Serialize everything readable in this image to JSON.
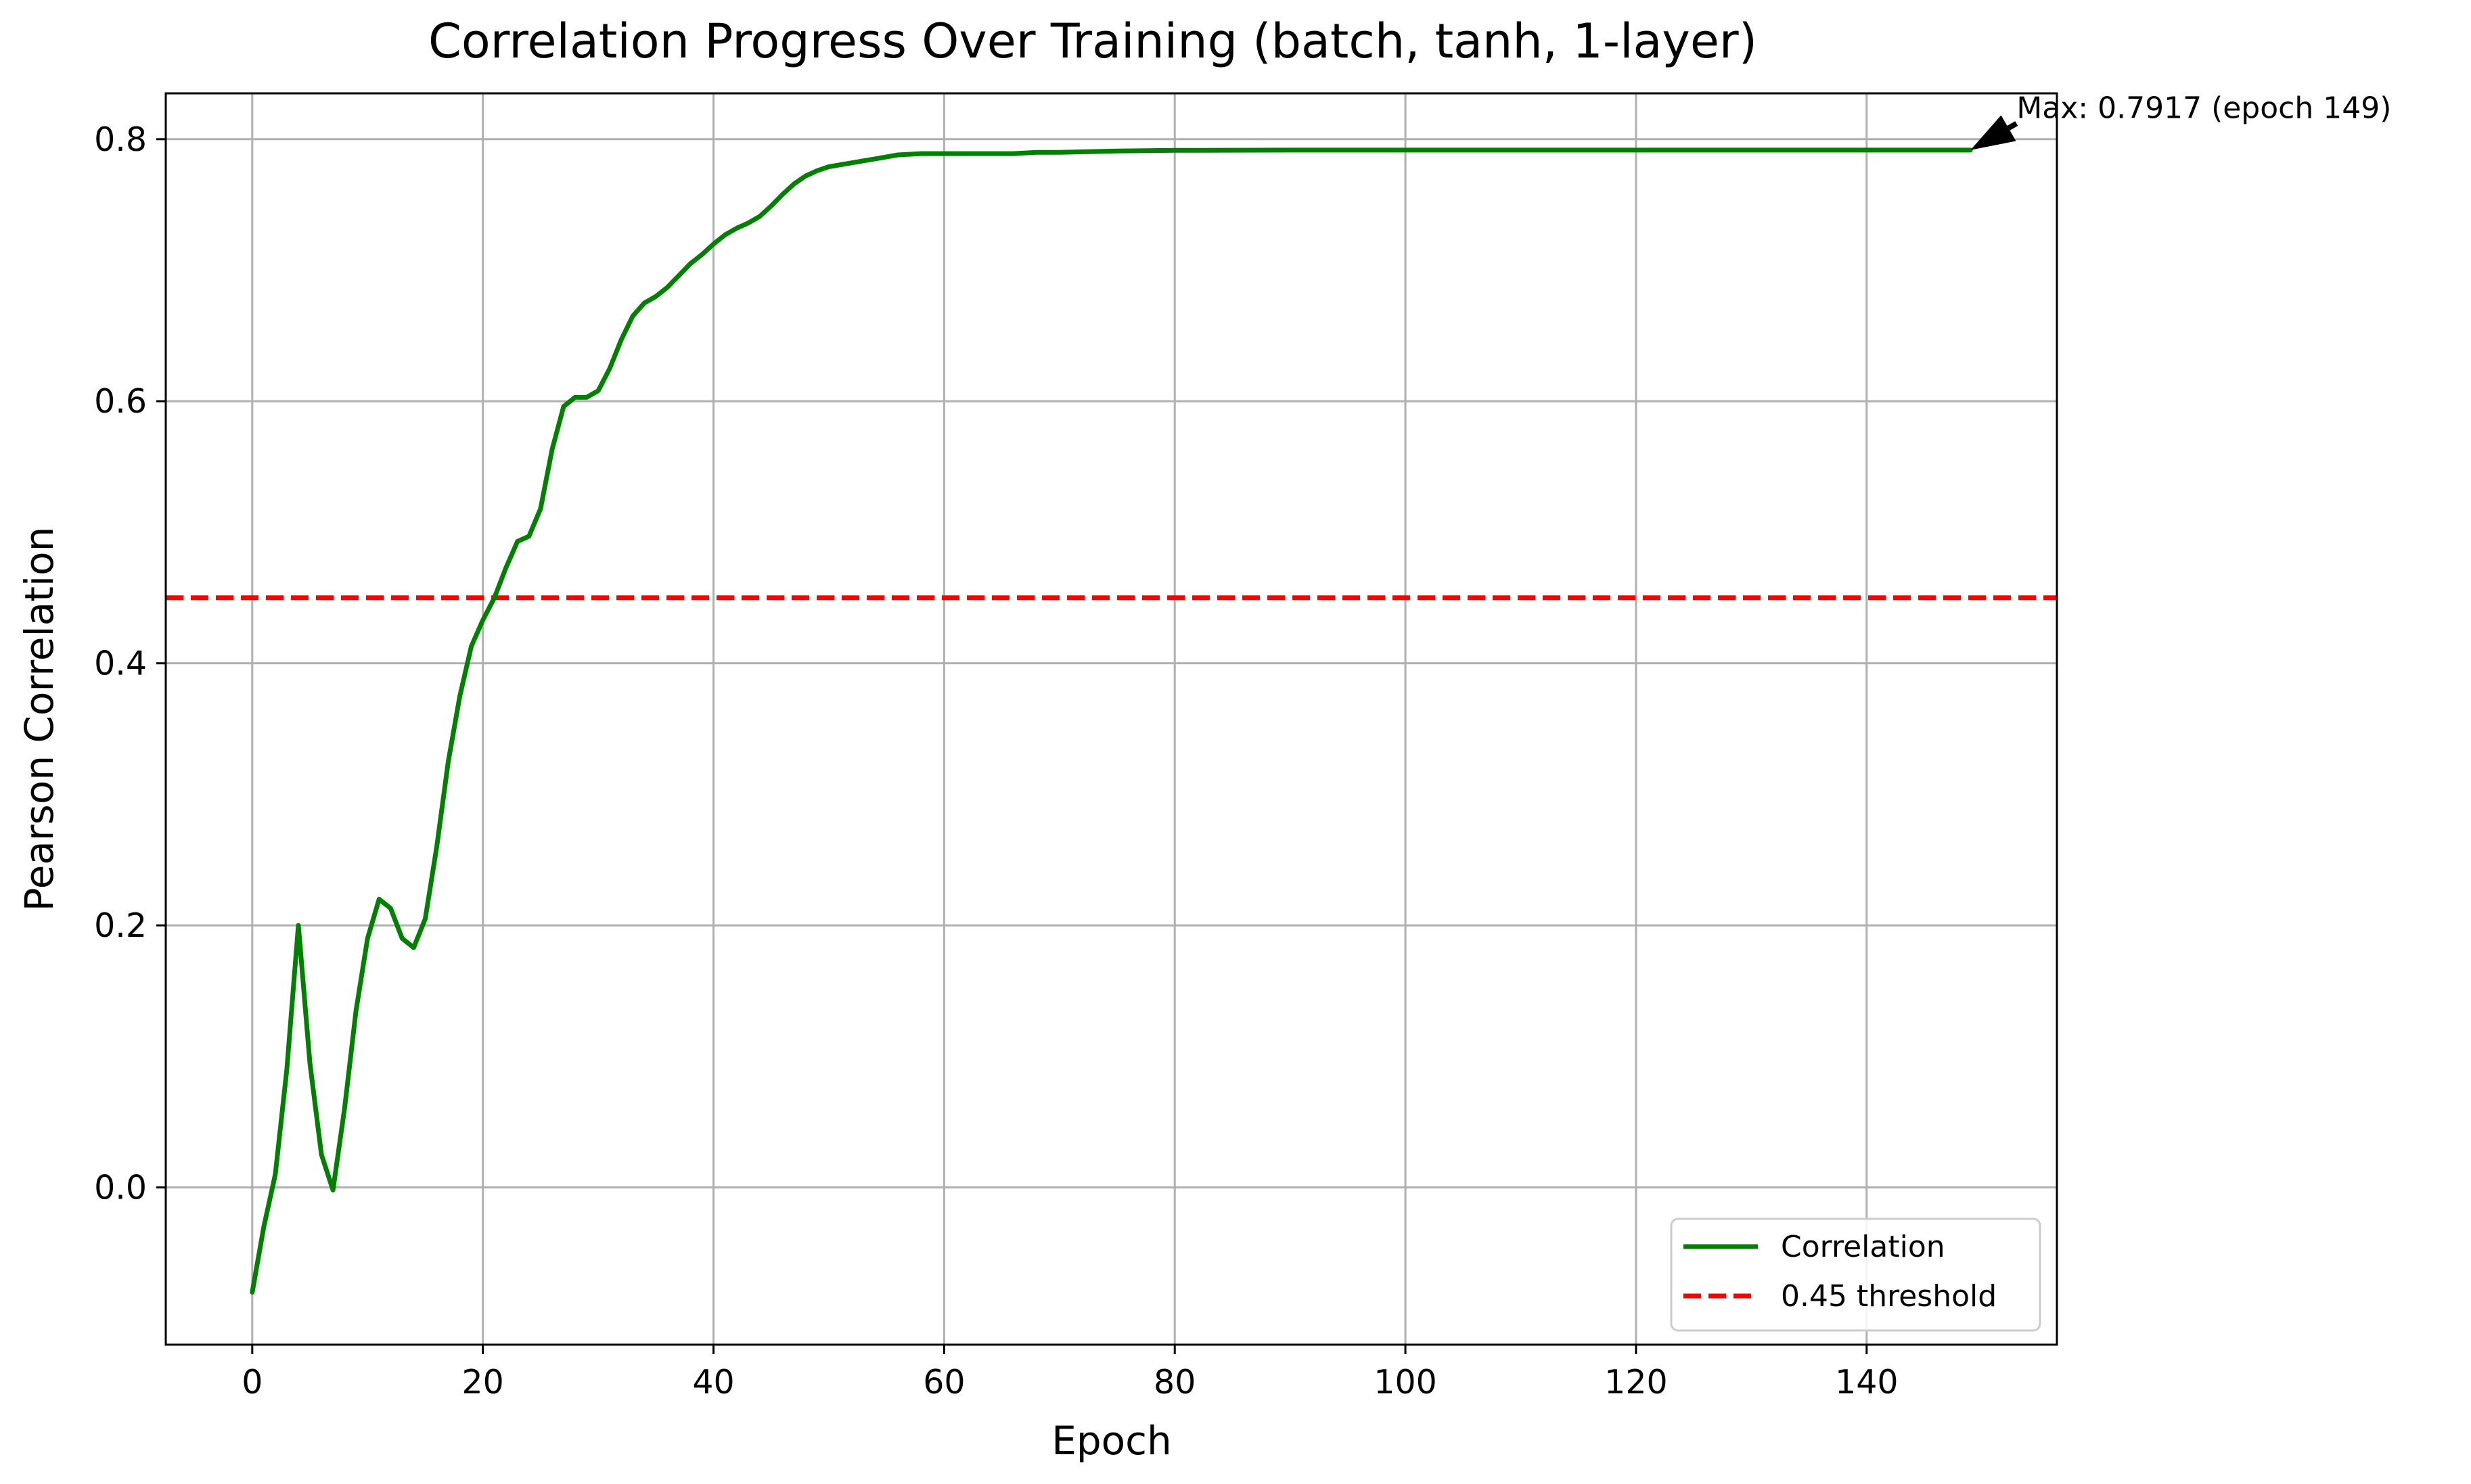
{
  "chart_data": {
    "type": "line",
    "title": "Correlation Progress Over Training (batch, tanh, 1-layer)",
    "xlabel": "Epoch",
    "ylabel": "Pearson Correlation",
    "xlim": [
      -7.5,
      156.5
    ],
    "ylim": [
      -0.12,
      0.835
    ],
    "xticks": [
      0,
      20,
      40,
      60,
      80,
      100,
      120,
      140
    ],
    "yticks": [
      0.0,
      0.2,
      0.4,
      0.6,
      0.8
    ],
    "xtick_labels": [
      "0",
      "20",
      "40",
      "60",
      "80",
      "100",
      "120",
      "140"
    ],
    "ytick_labels": [
      "0.0",
      "0.2",
      "0.4",
      "0.6",
      "0.8"
    ],
    "grid": true,
    "legend_position": "bottom-right",
    "series": [
      {
        "name": "Correlation",
        "color": "#008000",
        "style": "solid",
        "x": [
          0,
          1,
          2,
          3,
          4,
          5,
          6,
          7,
          8,
          9,
          10,
          11,
          12,
          13,
          14,
          15,
          16,
          17,
          18,
          19,
          20,
          21,
          22,
          23,
          24,
          25,
          26,
          27,
          28,
          29,
          30,
          31,
          32,
          33,
          34,
          35,
          36,
          37,
          38,
          39,
          40,
          41,
          42,
          43,
          44,
          45,
          46,
          47,
          48,
          49,
          50,
          52,
          54,
          56,
          58,
          60,
          62,
          64,
          66,
          68,
          70,
          75,
          80,
          90,
          100,
          110,
          120,
          130,
          140,
          149
        ],
        "y": [
          -0.08,
          -0.03,
          0.01,
          0.09,
          0.2,
          0.095,
          0.025,
          -0.002,
          0.06,
          0.135,
          0.19,
          0.22,
          0.213,
          0.19,
          0.183,
          0.205,
          0.26,
          0.325,
          0.375,
          0.413,
          0.433,
          0.45,
          0.473,
          0.493,
          0.497,
          0.518,
          0.563,
          0.596,
          0.603,
          0.603,
          0.608,
          0.625,
          0.647,
          0.665,
          0.675,
          0.68,
          0.687,
          0.696,
          0.705,
          0.712,
          0.72,
          0.727,
          0.732,
          0.736,
          0.741,
          0.749,
          0.758,
          0.766,
          0.772,
          0.776,
          0.779,
          0.782,
          0.785,
          0.788,
          0.789,
          0.789,
          0.789,
          0.789,
          0.789,
          0.79,
          0.79,
          0.791,
          0.7915,
          0.7917,
          0.7917,
          0.7917,
          0.7917,
          0.7917,
          0.7917,
          0.7917
        ]
      },
      {
        "name": "0.45 threshold",
        "color": "#ff0000",
        "style": "dashed",
        "threshold": 0.45
      }
    ],
    "annotation": {
      "text": "Max: 0.7917 (epoch 149)",
      "point": [
        149,
        0.7917
      ],
      "text_anchor": [
        153,
        0.812
      ]
    }
  }
}
